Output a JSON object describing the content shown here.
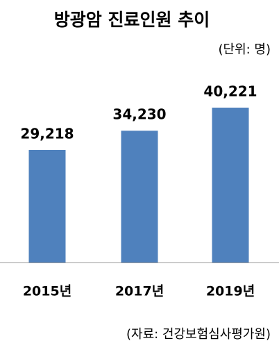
{
  "chart_data": {
    "type": "bar",
    "title": "방광암 진료인원 추이",
    "subtitle": "(단위: 명)",
    "source": "(자료: 건강보험심사평가원)",
    "categories": [
      "2015년",
      "2017년",
      "2019년"
    ],
    "values": [
      29218,
      34230,
      40221
    ],
    "value_labels": [
      "29,218",
      "34,230",
      "40,221"
    ],
    "color": "#4f81bd"
  }
}
